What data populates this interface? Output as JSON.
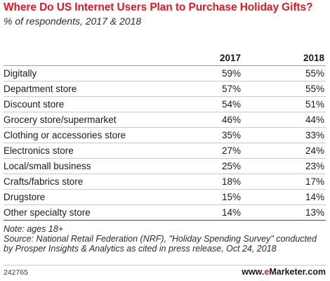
{
  "title": "Where Do US Internet Users Plan to Purchase Holiday Gifts?",
  "subtitle": "% of respondents, 2017 & 2018",
  "chart_data": {
    "type": "table",
    "title": "Where Do US Internet Users Plan to Purchase Holiday Gifts?",
    "subtitle": "% of respondents, 2017 & 2018",
    "columns": [
      "2017",
      "2018"
    ],
    "rows": [
      {
        "label": "Digitally",
        "values": [
          "59%",
          "55%"
        ]
      },
      {
        "label": "Department store",
        "values": [
          "57%",
          "55%"
        ]
      },
      {
        "label": "Discount store",
        "values": [
          "54%",
          "51%"
        ]
      },
      {
        "label": "Grocery store/supermarket",
        "values": [
          "46%",
          "44%"
        ]
      },
      {
        "label": "Clothing or accessories store",
        "values": [
          "35%",
          "33%"
        ]
      },
      {
        "label": "Electronics store",
        "values": [
          "27%",
          "24%"
        ]
      },
      {
        "label": "Local/small business",
        "values": [
          "25%",
          "23%"
        ]
      },
      {
        "label": "Crafts/fabrics store",
        "values": [
          "18%",
          "17%"
        ]
      },
      {
        "label": "Drugstore",
        "values": [
          "15%",
          "14%"
        ]
      },
      {
        "label": "Other specialty store",
        "values": [
          "14%",
          "13%"
        ]
      }
    ],
    "series": [
      {
        "name": "2017",
        "values": [
          59,
          57,
          54,
          46,
          35,
          27,
          25,
          18,
          15,
          14
        ]
      },
      {
        "name": "2018",
        "values": [
          55,
          55,
          51,
          44,
          33,
          24,
          23,
          17,
          14,
          13
        ]
      }
    ]
  },
  "notes": {
    "note": "Note: ages 18+",
    "source": "Source: National Retail Federation (NRF), \"Holiday Spending Survey\" conducted by Prosper Insights & Analytics as cited in press release, Oct 24, 2018"
  },
  "footer": {
    "chart_id": "242765",
    "brand_prefix": "www.",
    "brand_accent": "e",
    "brand_name": "Marketer",
    "brand_suffix": ".com"
  },
  "colors": {
    "title": "#e4161f",
    "text": "#1a1a1a",
    "rule": "#c9c9c9"
  }
}
